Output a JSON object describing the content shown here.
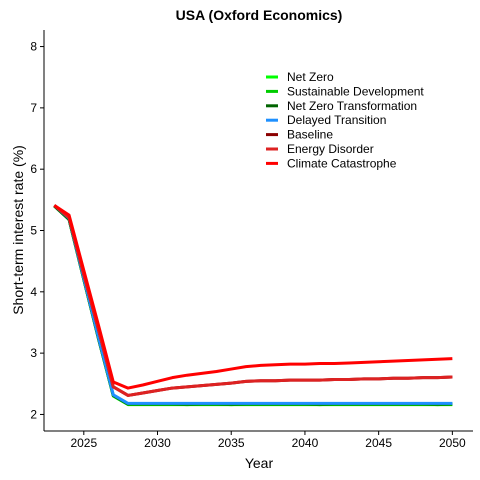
{
  "chart_data": {
    "type": "line",
    "title": "USA (Oxford Economics)",
    "xlabel": "Year",
    "ylabel": "Short-term interest rate (%)",
    "xlim": [
      2022.3,
      2051.4
    ],
    "ylim": [
      1.73,
      8.27
    ],
    "xticks": [
      2025,
      2030,
      2035,
      2040,
      2045,
      2050
    ],
    "yticks": [
      2,
      3,
      4,
      5,
      6,
      7,
      8
    ],
    "grid": false,
    "legend_position": "top-right",
    "x": [
      2023,
      2024,
      2025,
      2026,
      2027,
      2028,
      2029,
      2030,
      2031,
      2032,
      2033,
      2034,
      2035,
      2036,
      2037,
      2038,
      2039,
      2040,
      2041,
      2042,
      2043,
      2044,
      2045,
      2046,
      2047,
      2048,
      2049,
      2050
    ],
    "series": [
      {
        "name": "Net Zero",
        "color": "#00ff00",
        "values": [
          5.4,
          5.18,
          4.2,
          3.23,
          2.3,
          2.16,
          2.16,
          2.16,
          2.16,
          2.16,
          2.16,
          2.16,
          2.16,
          2.16,
          2.16,
          2.16,
          2.16,
          2.16,
          2.16,
          2.16,
          2.16,
          2.16,
          2.16,
          2.16,
          2.16,
          2.16,
          2.16,
          2.16
        ]
      },
      {
        "name": "Sustainable Development",
        "color": "#00cc00",
        "values": [
          5.41,
          5.19,
          4.21,
          3.24,
          2.31,
          2.17,
          2.17,
          2.17,
          2.17,
          2.16,
          2.17,
          2.17,
          2.16,
          2.17,
          2.17,
          2.17,
          2.17,
          2.17,
          2.16,
          2.17,
          2.17,
          2.17,
          2.17,
          2.17,
          2.17,
          2.17,
          2.16,
          2.17
        ]
      },
      {
        "name": "Net Zero Transformation",
        "color": "#006400",
        "values": [
          5.4,
          5.18,
          4.2,
          3.23,
          2.31,
          2.17,
          2.17,
          2.17,
          2.17,
          2.17,
          2.17,
          2.17,
          2.17,
          2.17,
          2.17,
          2.17,
          2.17,
          2.17,
          2.17,
          2.17,
          2.17,
          2.17,
          2.17,
          2.17,
          2.17,
          2.17,
          2.17,
          2.17
        ]
      },
      {
        "name": "Delayed Transition",
        "color": "#1e90ff",
        "values": [
          5.41,
          5.2,
          4.22,
          3.25,
          2.32,
          2.18,
          2.18,
          2.18,
          2.18,
          2.18,
          2.18,
          2.18,
          2.18,
          2.18,
          2.18,
          2.18,
          2.18,
          2.18,
          2.18,
          2.18,
          2.18,
          2.18,
          2.18,
          2.18,
          2.18,
          2.18,
          2.18,
          2.18
        ]
      },
      {
        "name": "Baseline",
        "color": "#8b0000",
        "values": [
          5.41,
          5.21,
          4.28,
          3.38,
          2.45,
          2.31,
          2.35,
          2.39,
          2.43,
          2.45,
          2.47,
          2.49,
          2.51,
          2.54,
          2.55,
          2.55,
          2.56,
          2.56,
          2.56,
          2.57,
          2.57,
          2.58,
          2.58,
          2.59,
          2.59,
          2.6,
          2.6,
          2.61
        ]
      },
      {
        "name": "Energy Disorder",
        "color": "#dd2222",
        "values": [
          5.41,
          5.21,
          4.28,
          3.38,
          2.45,
          2.31,
          2.35,
          2.39,
          2.43,
          2.45,
          2.47,
          2.49,
          2.51,
          2.54,
          2.55,
          2.55,
          2.56,
          2.56,
          2.56,
          2.57,
          2.57,
          2.58,
          2.58,
          2.59,
          2.59,
          2.6,
          2.6,
          2.61
        ]
      },
      {
        "name": "Climate Catastrophe",
        "color": "#ff0000",
        "values": [
          5.41,
          5.25,
          4.35,
          3.45,
          2.53,
          2.43,
          2.48,
          2.54,
          2.6,
          2.64,
          2.67,
          2.7,
          2.74,
          2.78,
          2.8,
          2.81,
          2.82,
          2.82,
          2.83,
          2.83,
          2.84,
          2.85,
          2.86,
          2.87,
          2.88,
          2.89,
          2.9,
          2.91
        ]
      }
    ]
  }
}
